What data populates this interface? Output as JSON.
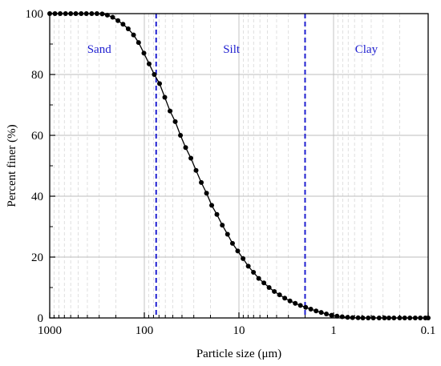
{
  "chart_data": {
    "type": "line",
    "title": "",
    "xlabel": "Particle size (μm)",
    "ylabel": "Percent finer (%)",
    "x_scale": "log",
    "x_reversed": true,
    "xlim": [
      1000,
      0.1
    ],
    "ylim": [
      0,
      100
    ],
    "x_ticks": [
      1000,
      100,
      10,
      1,
      0.1
    ],
    "x_tick_labels": [
      "1000",
      "100",
      "10",
      "1",
      "0.1"
    ],
    "y_ticks": [
      0,
      20,
      40,
      60,
      80,
      100
    ],
    "y_tick_labels": [
      "0",
      "20",
      "40",
      "60",
      "80",
      "100"
    ],
    "grid": true,
    "boundaries": [
      {
        "x": 75,
        "style": "dashed",
        "color": "#1f1fd0"
      },
      {
        "x": 2,
        "style": "dashed",
        "color": "#1f1fd0"
      }
    ],
    "zones": [
      {
        "label": "Sand",
        "x": 300
      },
      {
        "label": "Silt",
        "x": 12
      },
      {
        "label": "Clay",
        "x": 0.45
      }
    ],
    "series": [
      {
        "color": "#000000",
        "marker": "circle",
        "points": [
          [
            1000,
            100
          ],
          [
            880,
            100
          ],
          [
            775,
            100
          ],
          [
            680,
            100
          ],
          [
            600,
            100
          ],
          [
            530,
            100
          ],
          [
            465,
            100
          ],
          [
            410,
            100
          ],
          [
            360,
            100
          ],
          [
            317,
            100
          ],
          [
            279,
            99.9
          ],
          [
            246,
            99.5
          ],
          [
            216,
            98.8
          ],
          [
            190,
            97.7
          ],
          [
            168,
            96.5
          ],
          [
            148,
            95
          ],
          [
            130,
            93
          ],
          [
            115,
            90.5
          ],
          [
            101,
            87
          ],
          [
            89,
            83.5
          ],
          [
            78.5,
            80
          ],
          [
            69,
            77
          ],
          [
            60.8,
            72.5
          ],
          [
            53.5,
            68
          ],
          [
            47.1,
            64.5
          ],
          [
            41.5,
            60
          ],
          [
            36.6,
            56
          ],
          [
            32.2,
            52.5
          ],
          [
            28.4,
            48.5
          ],
          [
            25,
            44.5
          ],
          [
            22,
            41
          ],
          [
            19.4,
            37
          ],
          [
            17.1,
            34
          ],
          [
            15,
            30.5
          ],
          [
            13.2,
            27.5
          ],
          [
            11.7,
            24.5
          ],
          [
            10.3,
            22
          ],
          [
            9.05,
            19.5
          ],
          [
            7.97,
            17
          ],
          [
            7.02,
            15
          ],
          [
            6.18,
            13
          ],
          [
            5.45,
            11.5
          ],
          [
            4.8,
            10
          ],
          [
            4.23,
            8.7
          ],
          [
            3.72,
            7.6
          ],
          [
            3.28,
            6.5
          ],
          [
            2.89,
            5.6
          ],
          [
            2.54,
            4.8
          ],
          [
            2.24,
            4.1
          ],
          [
            1.97,
            3.5
          ],
          [
            1.74,
            2.9
          ],
          [
            1.53,
            2.3
          ],
          [
            1.35,
            1.8
          ],
          [
            1.19,
            1.3
          ],
          [
            1.05,
            0.9
          ],
          [
            0.92,
            0.6
          ],
          [
            0.81,
            0.4
          ],
          [
            0.71,
            0.2
          ],
          [
            0.63,
            0.1
          ],
          [
            0.55,
            0.05
          ],
          [
            0.49,
            0
          ],
          [
            0.43,
            0
          ],
          [
            0.38,
            0
          ],
          [
            0.33,
            0
          ],
          [
            0.29,
            0
          ],
          [
            0.26,
            0
          ],
          [
            0.23,
            0
          ],
          [
            0.2,
            0
          ],
          [
            0.177,
            0
          ],
          [
            0.156,
            0
          ],
          [
            0.137,
            0
          ],
          [
            0.121,
            0
          ],
          [
            0.107,
            0
          ],
          [
            0.1,
            0
          ]
        ]
      }
    ]
  }
}
